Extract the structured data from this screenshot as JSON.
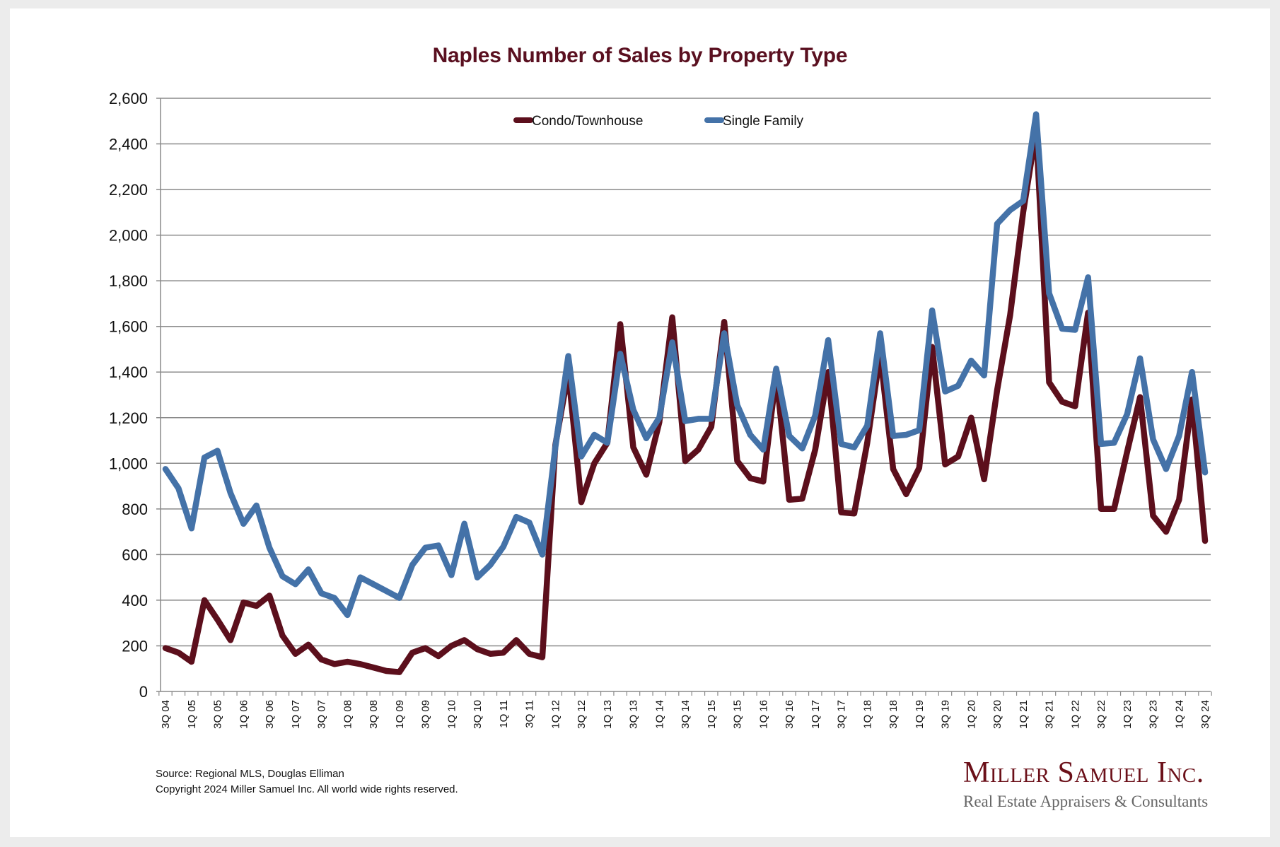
{
  "chart_data": {
    "type": "line",
    "title": "Naples Number of Sales by Property Type",
    "xlabel": "",
    "ylabel": "",
    "ylim": [
      0,
      2600
    ],
    "yticks": [
      "0",
      "200",
      "400",
      "600",
      "800",
      "1,000",
      "1,200",
      "1,400",
      "1,600",
      "1,800",
      "2,000",
      "2,200",
      "2,400",
      "2,600"
    ],
    "ytick_values": [
      0,
      200,
      400,
      600,
      800,
      1000,
      1200,
      1400,
      1600,
      1800,
      2000,
      2200,
      2400,
      2600
    ],
    "grid": "horizontal",
    "legend_position": "top-center",
    "x": [
      "3Q 04",
      "4Q 04",
      "1Q 05",
      "2Q 05",
      "3Q 05",
      "4Q 05",
      "1Q 06",
      "2Q 06",
      "3Q 06",
      "4Q 06",
      "1Q 07",
      "2Q 07",
      "3Q 07",
      "4Q 07",
      "1Q 08",
      "2Q 08",
      "3Q 08",
      "4Q 08",
      "1Q 09",
      "2Q 09",
      "3Q 09",
      "4Q 09",
      "1Q 10",
      "2Q 10",
      "3Q 10",
      "4Q 10",
      "1Q 11",
      "2Q 11",
      "3Q 11",
      "4Q 11",
      "1Q 12",
      "2Q 12",
      "3Q 12",
      "4Q 12",
      "1Q 13",
      "2Q 13",
      "3Q 13",
      "4Q 13",
      "1Q 14",
      "2Q 14",
      "3Q 14",
      "4Q 14",
      "1Q 15",
      "2Q 15",
      "3Q 15",
      "4Q 15",
      "1Q 16",
      "2Q 16",
      "3Q 16",
      "4Q 16",
      "1Q 17",
      "2Q 17",
      "3Q 17",
      "4Q 17",
      "1Q 18",
      "2Q 18",
      "3Q 18",
      "4Q 18",
      "1Q 19",
      "2Q 19",
      "3Q 19",
      "4Q 19",
      "1Q 20",
      "2Q 20",
      "3Q 20",
      "4Q 20",
      "1Q 21",
      "2Q 21",
      "3Q 21",
      "4Q 21",
      "1Q 22",
      "2Q 22",
      "3Q 22",
      "4Q 22",
      "1Q 23",
      "2Q 23",
      "3Q 23",
      "4Q 23",
      "1Q 24",
      "2Q 24",
      "3Q 24"
    ],
    "xtick_labels_shown_every": 2,
    "series": [
      {
        "name": "Condo/Townhouse",
        "color": "#5c0f1c",
        "values": [
          190,
          170,
          130,
          400,
          315,
          225,
          390,
          375,
          420,
          245,
          165,
          205,
          140,
          120,
          130,
          120,
          105,
          90,
          85,
          170,
          190,
          155,
          200,
          225,
          185,
          165,
          170,
          225,
          165,
          150,
          1080,
          1400,
          830,
          1000,
          1090,
          1610,
          1070,
          950,
          1180,
          1640,
          1010,
          1060,
          1160,
          1620,
          1010,
          935,
          920,
          1390,
          840,
          845,
          1060,
          1400,
          785,
          780,
          1090,
          1480,
          975,
          865,
          980,
          1510,
          995,
          1030,
          1200,
          930,
          1320,
          1650,
          2100,
          2460,
          1355,
          1270,
          1250,
          1660,
          800,
          800,
          1050,
          1290,
          770,
          700,
          840,
          1280,
          660
        ]
      },
      {
        "name": "Single Family",
        "color": "#4472a8",
        "values": [
          975,
          890,
          715,
          1025,
          1055,
          870,
          735,
          815,
          630,
          505,
          470,
          535,
          430,
          410,
          335,
          500,
          470,
          440,
          410,
          555,
          630,
          640,
          510,
          735,
          500,
          555,
          635,
          765,
          740,
          600,
          1070,
          1470,
          1030,
          1125,
          1090,
          1480,
          1235,
          1110,
          1200,
          1530,
          1185,
          1195,
          1195,
          1570,
          1255,
          1125,
          1060,
          1415,
          1120,
          1065,
          1210,
          1540,
          1085,
          1070,
          1165,
          1570,
          1120,
          1125,
          1145,
          1670,
          1315,
          1340,
          1450,
          1385,
          2050,
          2110,
          2150,
          2530,
          1745,
          1590,
          1585,
          1815,
          1085,
          1090,
          1215,
          1460,
          1105,
          975,
          1120,
          1400,
          960
        ]
      }
    ]
  },
  "footer": {
    "source": "Source: Regional MLS, Douglas Elliman",
    "copyright": "Copyright 2024 Miller Samuel Inc.  All world wide rights reserved."
  },
  "logo": {
    "name": "Miller Samuel Inc.",
    "tagline": "Real Estate Appraisers & Consultants"
  }
}
